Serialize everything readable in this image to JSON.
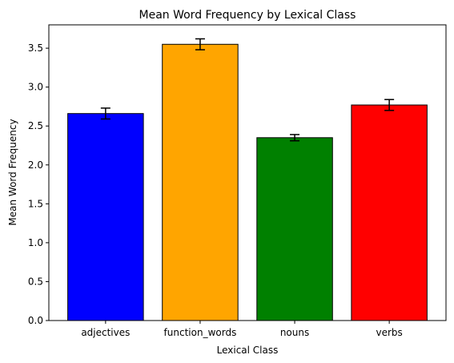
{
  "chart_data": {
    "type": "bar",
    "title": "Mean Word Frequency by Lexical Class",
    "xlabel": "Lexical Class",
    "ylabel": "Mean Word Frequency",
    "categories": [
      "adjectives",
      "function_words",
      "nouns",
      "verbs"
    ],
    "values": [
      2.66,
      3.55,
      2.35,
      2.77
    ],
    "errors": [
      0.07,
      0.07,
      0.04,
      0.07
    ],
    "colors": [
      "#0000ff",
      "#ffa500",
      "#008000",
      "#ff0000"
    ],
    "ylim": [
      0,
      3.8
    ],
    "yticks": [
      0.0,
      0.5,
      1.0,
      1.5,
      2.0,
      2.5,
      3.0,
      3.5
    ],
    "ytick_labels": [
      "0.0",
      "0.5",
      "1.0",
      "1.5",
      "2.0",
      "2.5",
      "3.0",
      "3.5"
    ],
    "grid": false,
    "legend": false
  }
}
